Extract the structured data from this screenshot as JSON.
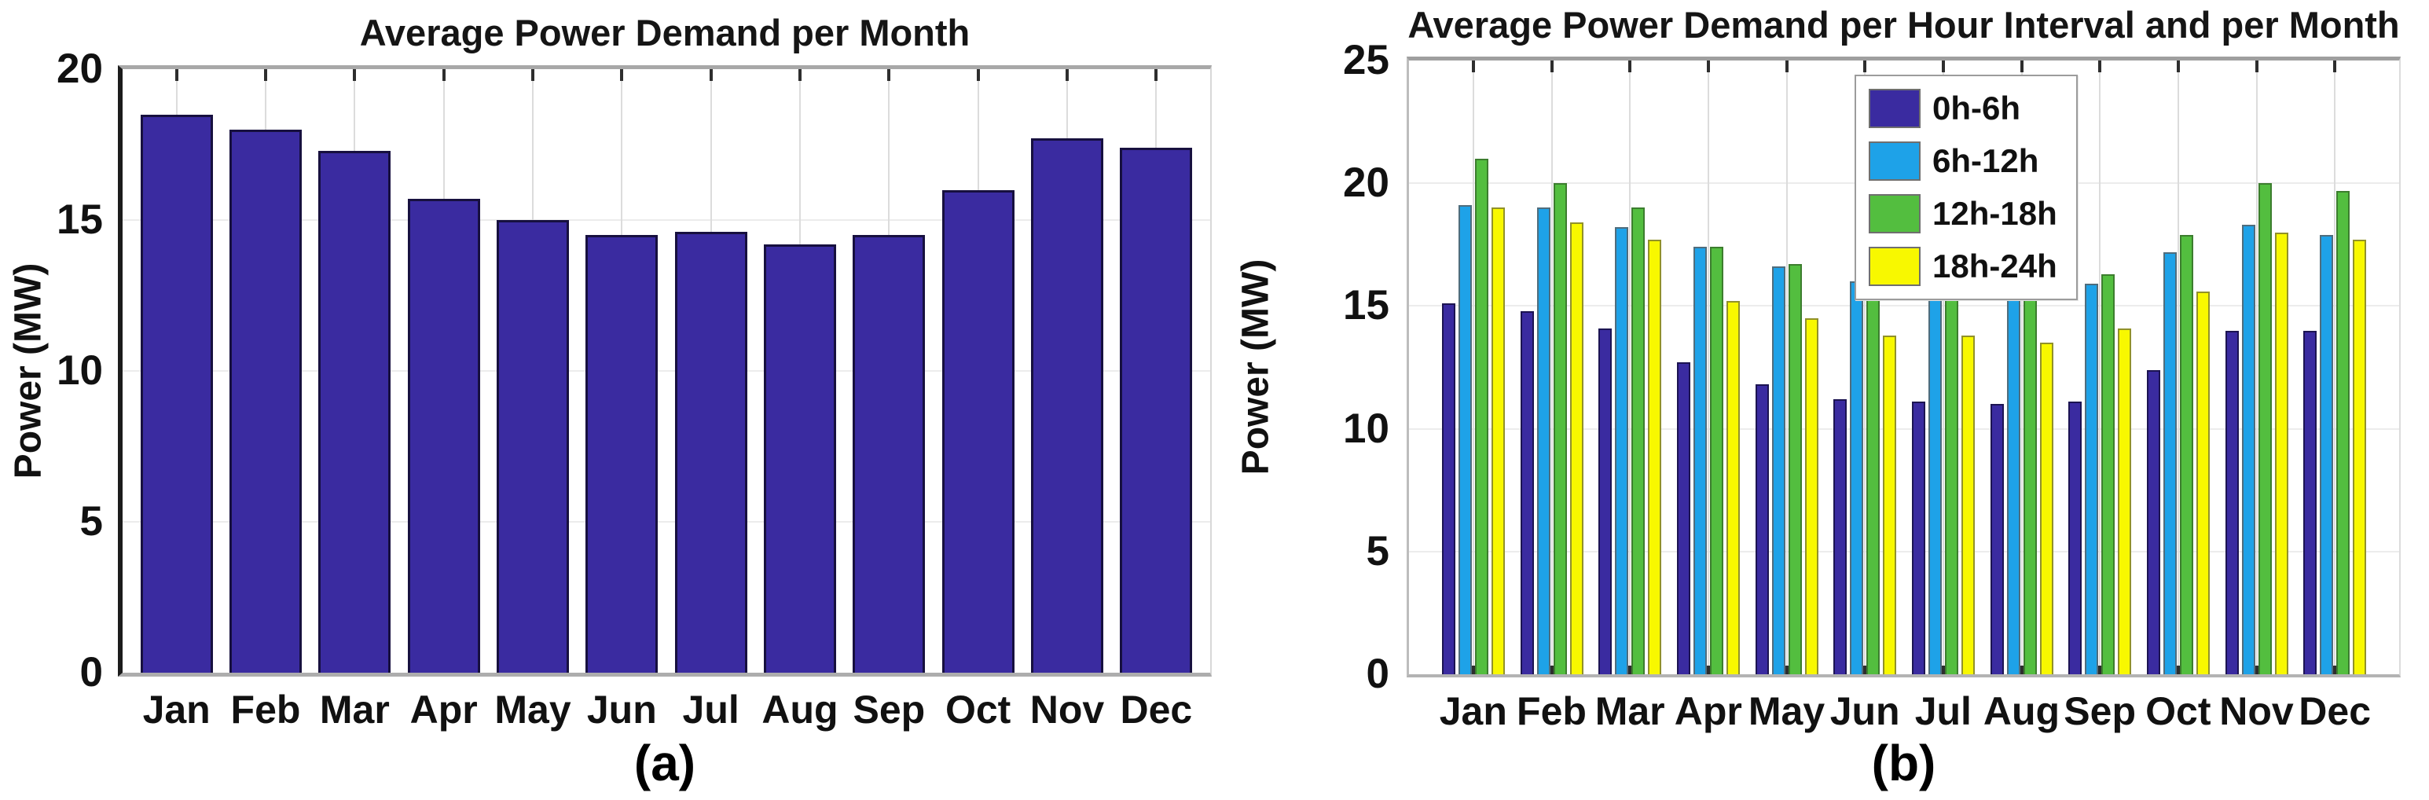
{
  "chart_data": [
    {
      "panel": "a",
      "type": "bar",
      "title": "Average Power Demand per Month",
      "ylabel": "Power (MW)",
      "xlabel": "",
      "categories": [
        "Jan",
        "Feb",
        "Mar",
        "Apr",
        "May",
        "Jun",
        "Jul",
        "Aug",
        "Sep",
        "Oct",
        "Nov",
        "Dec"
      ],
      "values": [
        18.5,
        18.0,
        17.3,
        15.7,
        15.0,
        14.5,
        14.6,
        14.2,
        14.5,
        16.0,
        17.7,
        17.4
      ],
      "ylim": [
        0,
        20
      ],
      "yticks": [
        0,
        5,
        10,
        15,
        20
      ],
      "grid": true,
      "bar_color": "#3a2ba0",
      "bar_edge_color": "#17103f",
      "caption": "(a)"
    },
    {
      "panel": "b",
      "type": "bar",
      "grouped": true,
      "title": "Average Power Demand per Hour Interval and per Month",
      "ylabel": "Power (MW)",
      "xlabel": "",
      "categories": [
        "Jan",
        "Feb",
        "Mar",
        "Apr",
        "May",
        "Jun",
        "Jul",
        "Aug",
        "Sep",
        "Oct",
        "Nov",
        "Dec"
      ],
      "series": [
        {
          "name": "0h-6h",
          "color": "#3a2ba0",
          "edge_color": "#1c1452",
          "values": [
            15.1,
            14.8,
            14.1,
            12.7,
            11.8,
            11.2,
            11.1,
            11.0,
            11.1,
            12.4,
            14.0,
            14.0
          ]
        },
        {
          "name": "6h-12h",
          "color": "#1ea2e8",
          "edge_color": "#4f6d7d",
          "values": [
            19.1,
            19.0,
            18.2,
            17.4,
            16.6,
            16.0,
            16.0,
            15.5,
            15.9,
            17.2,
            18.3,
            17.9
          ]
        },
        {
          "name": "12h-18h",
          "color": "#53be3f",
          "edge_color": "#3c7d2e",
          "values": [
            21.0,
            20.0,
            19.0,
            17.4,
            16.7,
            16.3,
            16.5,
            15.9,
            16.3,
            17.9,
            20.0,
            19.7
          ]
        },
        {
          "name": "18h-24h",
          "color": "#f8f800",
          "edge_color": "#91912a",
          "values": [
            19.0,
            18.4,
            17.7,
            15.2,
            14.5,
            13.8,
            13.8,
            13.5,
            14.1,
            15.6,
            18.0,
            17.7
          ]
        }
      ],
      "ylim": [
        0,
        25
      ],
      "yticks": [
        0,
        5,
        10,
        15,
        20,
        25
      ],
      "grid": true,
      "legend": {
        "position": "top-center",
        "entries": [
          "0h-6h",
          "6h-12h",
          "12h-18h",
          "18h-24h"
        ]
      },
      "caption": "(b)"
    }
  ]
}
